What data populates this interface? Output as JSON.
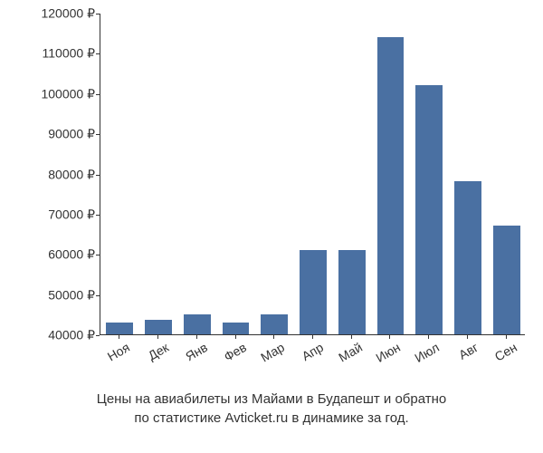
{
  "chart": {
    "type": "bar",
    "categories": [
      "Ноя",
      "Дек",
      "Янв",
      "Фев",
      "Мар",
      "Апр",
      "Май",
      "Июн",
      "Июл",
      "Авг",
      "Сен"
    ],
    "values": [
      43000,
      43500,
      45000,
      43000,
      45000,
      61000,
      61000,
      114000,
      102000,
      78000,
      67000
    ],
    "bar_color": "#4a70a2",
    "y_min": 40000,
    "y_max": 120000,
    "y_ticks": [
      40000,
      50000,
      60000,
      70000,
      80000,
      90000,
      100000,
      110000,
      120000
    ],
    "y_tick_labels": [
      "40000 ₽",
      "50000 ₽",
      "60000 ₽",
      "70000 ₽",
      "80000 ₽",
      "90000 ₽",
      "100000 ₽",
      "110000 ₽",
      "120000 ₽"
    ],
    "bar_width_ratio": 0.7,
    "axis_color": "#333333",
    "background_color": "#ffffff",
    "label_fontsize": 14,
    "label_color": "#333333",
    "x_label_rotation_deg": -30
  },
  "caption": {
    "line1": "Цены на авиабилеты из Майами в Будапешт и обратно",
    "line2": "по статистике Avticket.ru в динамике за год."
  }
}
